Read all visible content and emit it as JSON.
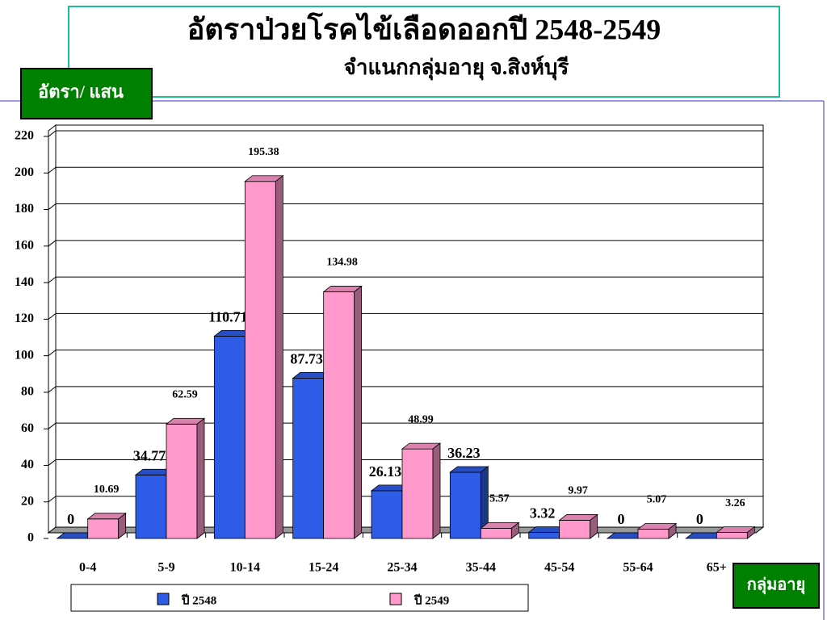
{
  "chart_data": {
    "type": "bar3d",
    "title": "อัตราป่วยโรคไข้เลือดออกปี 2548-2549",
    "subtitle": "จำแนกกลุ่มอายุ จ.สิงห์บุรี",
    "y_label": "อัตรา/ แสน",
    "x_label": "กลุ่มอายุ",
    "categories": [
      "0-4",
      "5-9",
      "10-14",
      "15-24",
      "25-34",
      "35-44",
      "45-54",
      "55-64",
      "65+"
    ],
    "series": [
      {
        "name": "ปี 2548",
        "color": "#2e5ce6",
        "values": [
          0,
          34.77,
          110.71,
          87.73,
          26.13,
          36.23,
          3.32,
          0,
          0
        ]
      },
      {
        "name": "ปี 2549",
        "color": "#ff99cc",
        "values": [
          10.69,
          62.59,
          195.38,
          134.98,
          48.99,
          5.57,
          9.97,
          5.07,
          3.26
        ]
      }
    ],
    "ylim": [
      0,
      220
    ],
    "yticks": [
      0,
      20,
      40,
      60,
      80,
      100,
      120,
      140,
      160,
      180,
      200,
      220
    ],
    "grid": true
  }
}
